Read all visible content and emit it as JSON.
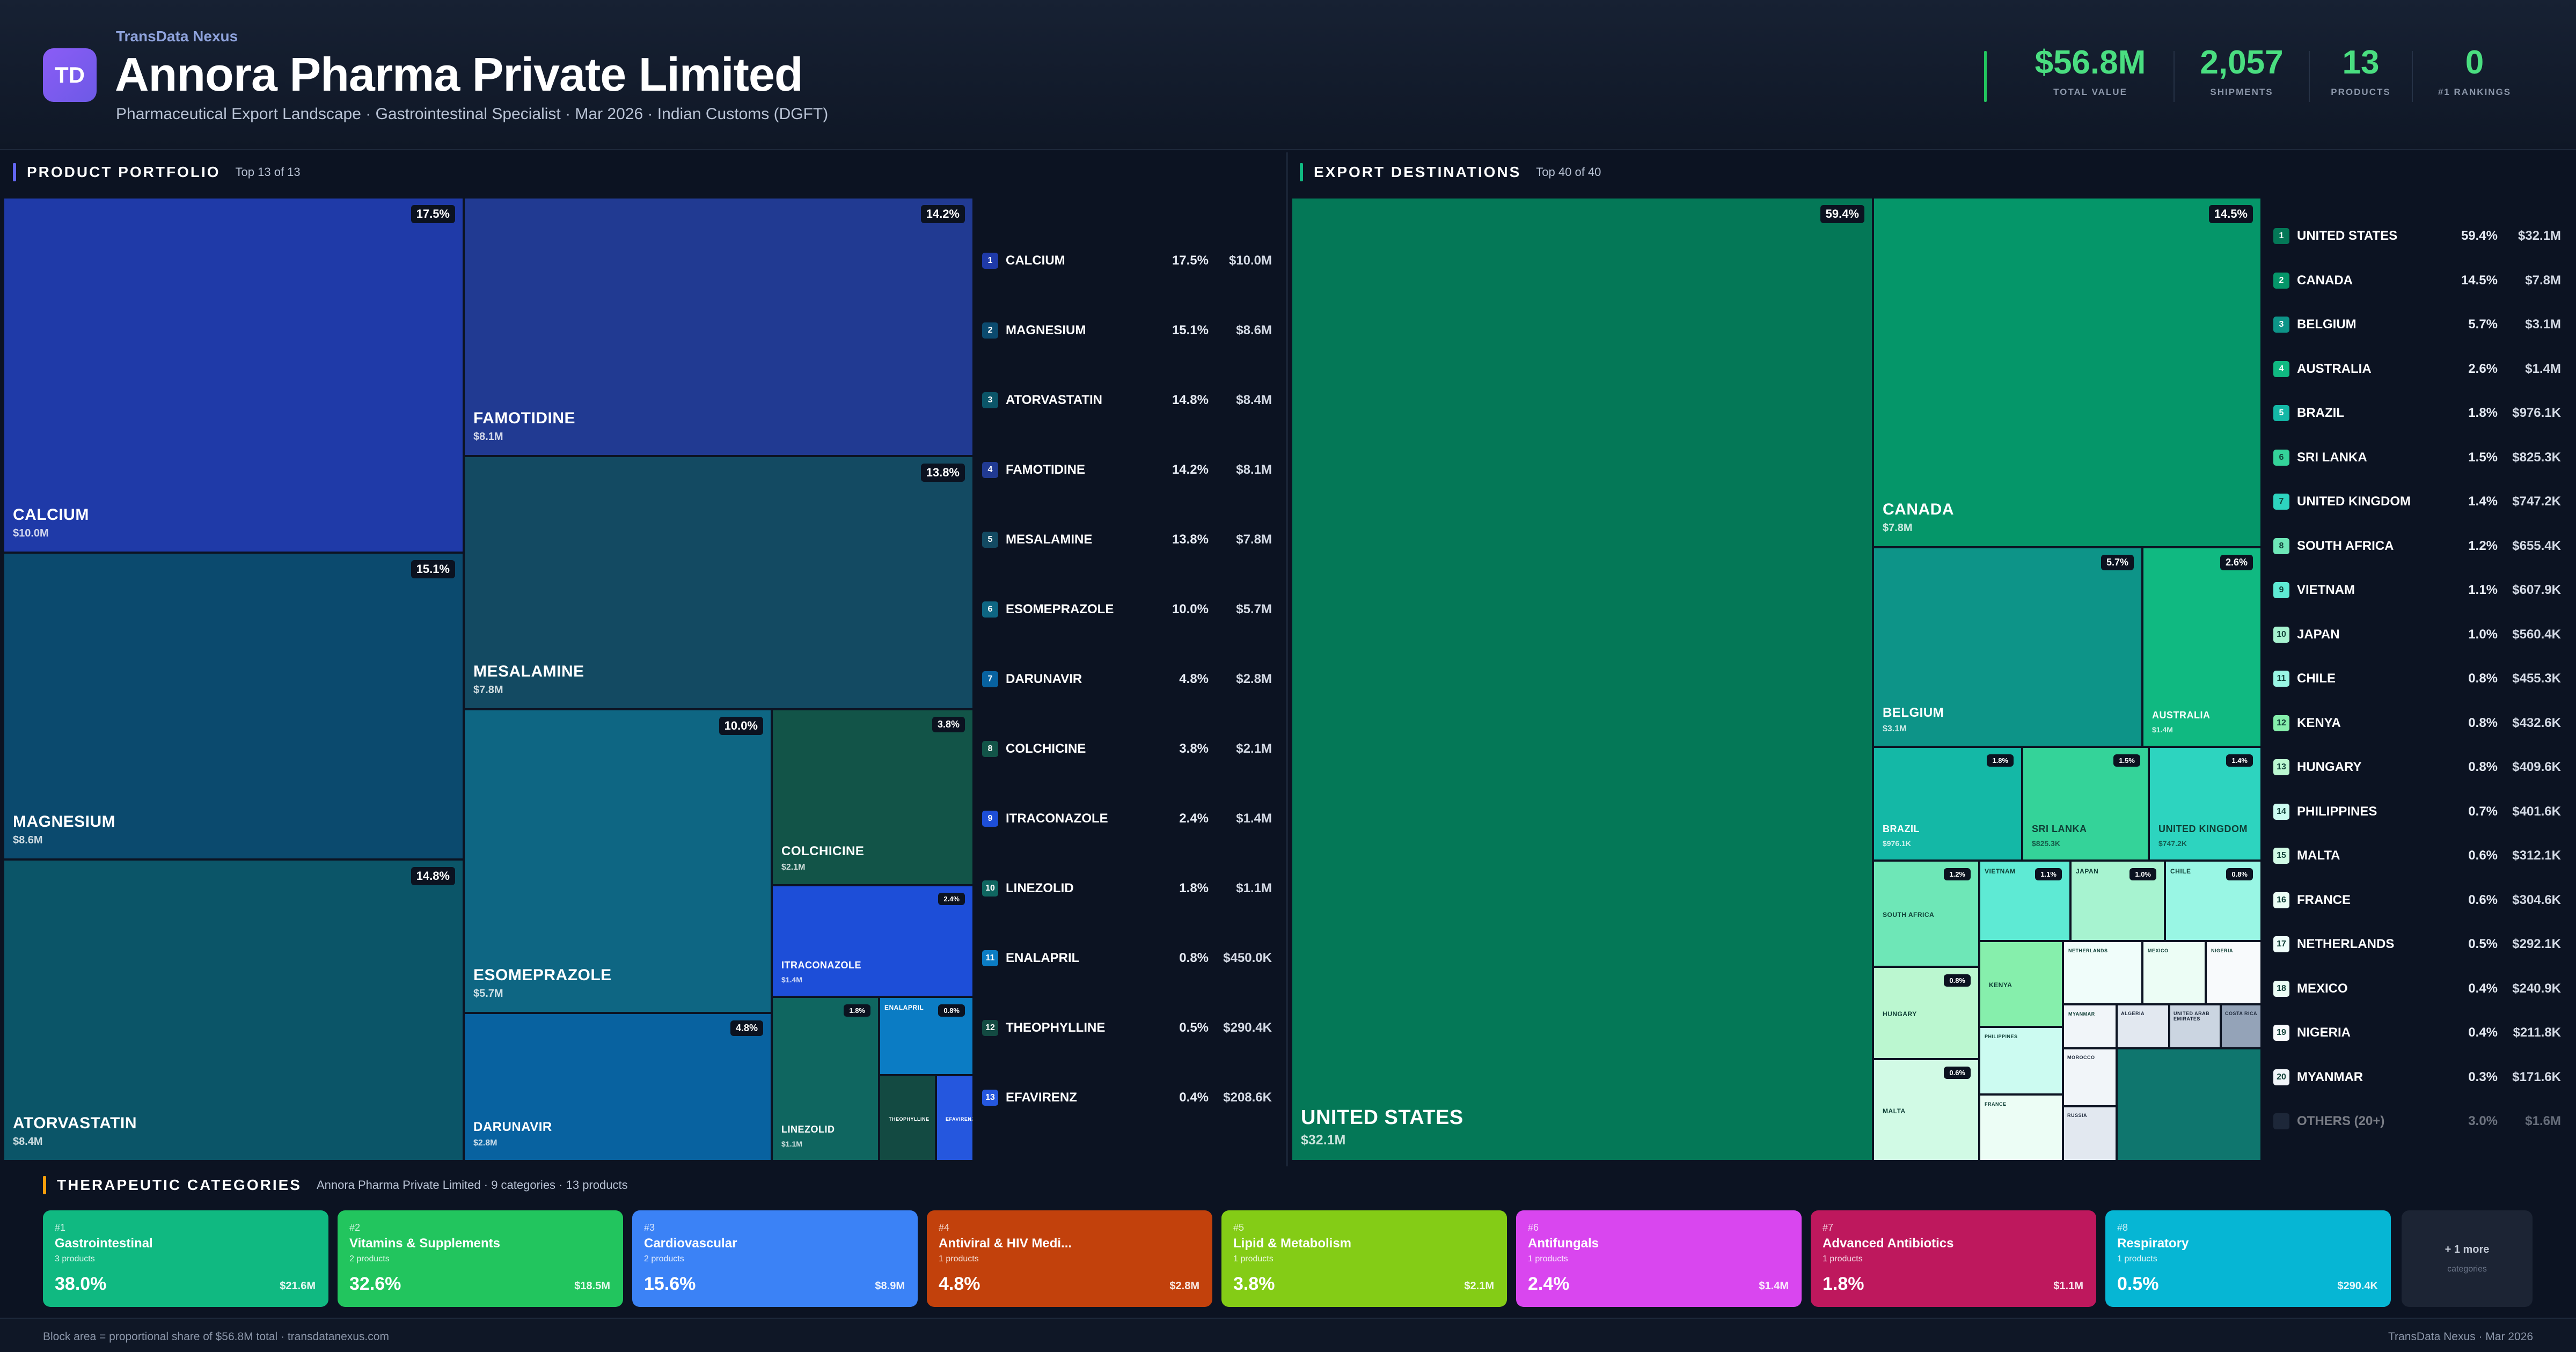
{
  "header": {
    "brand": "TransData Nexus",
    "logo_text": "TD",
    "title": "Annora Pharma Private Limited",
    "subtitle": "Pharmaceutical Export Landscape · Gastrointestinal Specialist · Mar 2026 · Indian Customs (DGFT)",
    "stats": [
      {
        "value": "$56.8M",
        "label": "TOTAL VALUE"
      },
      {
        "value": "2,057",
        "label": "SHIPMENTS"
      },
      {
        "value": "13",
        "label": "PRODUCTS"
      },
      {
        "value": "0",
        "label": "#1 RANKINGS"
      }
    ]
  },
  "portfolio": {
    "title": "PRODUCT PORTFOLIO",
    "subtitle": "Top 13 of 13",
    "items": [
      {
        "rank": "1",
        "name": "CALCIUM",
        "pct": "17.5%",
        "value": "$10.0M",
        "color": "#1f3aa8"
      },
      {
        "rank": "2",
        "name": "MAGNESIUM",
        "pct": "15.1%",
        "value": "$8.6M",
        "color": "#0b4a6e"
      },
      {
        "rank": "3",
        "name": "ATORVASTATIN",
        "pct": "14.8%",
        "value": "$8.4M",
        "color": "#0b5568"
      },
      {
        "rank": "4",
        "name": "FAMOTIDINE",
        "pct": "14.2%",
        "value": "$8.1M",
        "color": "#213a92"
      },
      {
        "rank": "5",
        "name": "MESALAMINE",
        "pct": "13.8%",
        "value": "$7.8M",
        "color": "#134a62"
      },
      {
        "rank": "6",
        "name": "ESOMEPRAZOLE",
        "pct": "10.0%",
        "value": "$5.7M",
        "color": "#0e6683"
      },
      {
        "rank": "7",
        "name": "DARUNAVIR",
        "pct": "4.8%",
        "value": "$2.8M",
        "color": "#0862a0"
      },
      {
        "rank": "8",
        "name": "COLCHICINE",
        "pct": "3.8%",
        "value": "$2.1M",
        "color": "#125448"
      },
      {
        "rank": "9",
        "name": "ITRACONAZOLE",
        "pct": "2.4%",
        "value": "$1.4M",
        "color": "#1d4ed8"
      },
      {
        "rank": "10",
        "name": "LINEZOLID",
        "pct": "1.8%",
        "value": "$1.1M",
        "color": "#0f6660"
      },
      {
        "rank": "11",
        "name": "ENALAPRIL",
        "pct": "0.8%",
        "value": "$450.0K",
        "color": "#0b7cc4"
      },
      {
        "rank": "12",
        "name": "THEOPHYLLINE",
        "pct": "0.5%",
        "value": "$290.4K",
        "color": "#134a42"
      },
      {
        "rank": "13",
        "name": "EFAVIRENZ",
        "pct": "0.4%",
        "value": "$208.6K",
        "color": "#2557de"
      }
    ]
  },
  "destinations": {
    "title": "EXPORT DESTINATIONS",
    "subtitle": "Top 40 of 40",
    "items": [
      {
        "rank": "1",
        "name": "UNITED STATES",
        "pct": "59.4%",
        "value": "$32.1M",
        "color": "#047857"
      },
      {
        "rank": "2",
        "name": "CANADA",
        "pct": "14.5%",
        "value": "$7.8M",
        "color": "#059669"
      },
      {
        "rank": "3",
        "name": "BELGIUM",
        "pct": "5.7%",
        "value": "$3.1M",
        "color": "#0d9488"
      },
      {
        "rank": "4",
        "name": "AUSTRALIA",
        "pct": "2.6%",
        "value": "$1.4M",
        "color": "#10b981"
      },
      {
        "rank": "5",
        "name": "BRAZIL",
        "pct": "1.8%",
        "value": "$976.1K",
        "color": "#14b8a6"
      },
      {
        "rank": "6",
        "name": "SRI LANKA",
        "pct": "1.5%",
        "value": "$825.3K",
        "color": "#34d399"
      },
      {
        "rank": "7",
        "name": "UNITED KINGDOM",
        "pct": "1.4%",
        "value": "$747.2K",
        "color": "#2dd4bf"
      },
      {
        "rank": "8",
        "name": "SOUTH AFRICA",
        "pct": "1.2%",
        "value": "$655.4K",
        "color": "#6ee7b7"
      },
      {
        "rank": "9",
        "name": "VIETNAM",
        "pct": "1.1%",
        "value": "$607.9K",
        "color": "#5eead4"
      },
      {
        "rank": "10",
        "name": "JAPAN",
        "pct": "1.0%",
        "value": "$560.4K",
        "color": "#a7f3d0"
      },
      {
        "rank": "11",
        "name": "CHILE",
        "pct": "0.8%",
        "value": "$455.3K",
        "color": "#99f6e4"
      },
      {
        "rank": "12",
        "name": "KENYA",
        "pct": "0.8%",
        "value": "$432.6K",
        "color": "#86efac"
      },
      {
        "rank": "13",
        "name": "HUNGARY",
        "pct": "0.8%",
        "value": "$409.6K",
        "color": "#bbf7d0"
      },
      {
        "rank": "14",
        "name": "PHILIPPINES",
        "pct": "0.7%",
        "value": "$401.6K",
        "color": "#ccfbf1"
      },
      {
        "rank": "15",
        "name": "MALTA",
        "pct": "0.6%",
        "value": "$312.1K",
        "color": "#d1fae5"
      },
      {
        "rank": "16",
        "name": "FRANCE",
        "pct": "0.6%",
        "value": "$304.6K",
        "color": "#ecfdf5"
      },
      {
        "rank": "17",
        "name": "NETHERLANDS",
        "pct": "0.5%",
        "value": "$292.1K",
        "color": "#f0fdfa"
      },
      {
        "rank": "18",
        "name": "MEXICO",
        "pct": "0.4%",
        "value": "$240.9K",
        "color": "#ecfdf5"
      },
      {
        "rank": "19",
        "name": "NIGERIA",
        "pct": "0.4%",
        "value": "$211.8K",
        "color": "#f8fafc"
      },
      {
        "rank": "20",
        "name": "MYANMAR",
        "pct": "0.3%",
        "value": "$171.6K",
        "color": "#f1f5f9"
      }
    ],
    "others": {
      "name": "OTHERS (20+)",
      "pct": "3.0%",
      "value": "$1.6M",
      "color": "#334155"
    },
    "small_tiles": [
      {
        "name": "ALGERIA",
        "color": "#e2e8f0"
      },
      {
        "name": "UNITED ARAB EMIRATES",
        "color": "#cbd5e1"
      },
      {
        "name": "COSTA RICA",
        "color": "#94a3b8"
      },
      {
        "name": "MOROCCO",
        "color": "#f1f5f9"
      },
      {
        "name": "RUSSIA",
        "color": "#e2e8f0"
      }
    ]
  },
  "categories": {
    "title": "THERAPEUTIC CATEGORIES",
    "subtitle": "Annora Pharma Private Limited · 9 categories · 13 products",
    "items": [
      {
        "rank": "#1",
        "name": "Gastrointestinal",
        "count": "3 products",
        "pct": "38.0%",
        "value": "$21.6M",
        "color": "#10b981"
      },
      {
        "rank": "#2",
        "name": "Vitamins & Supplements",
        "count": "2 products",
        "pct": "32.6%",
        "value": "$18.5M",
        "color": "#22c55e"
      },
      {
        "rank": "#3",
        "name": "Cardiovascular",
        "count": "2 products",
        "pct": "15.6%",
        "value": "$8.9M",
        "color": "#3b82f6"
      },
      {
        "rank": "#4",
        "name": "Antiviral & HIV Medi...",
        "count": "1 products",
        "pct": "4.8%",
        "value": "$2.8M",
        "color": "#c2410c"
      },
      {
        "rank": "#5",
        "name": "Lipid & Metabolism",
        "count": "1 products",
        "pct": "3.8%",
        "value": "$2.1M",
        "color": "#84cc16"
      },
      {
        "rank": "#6",
        "name": "Antifungals",
        "count": "1 products",
        "pct": "2.4%",
        "value": "$1.4M",
        "color": "#d946ef"
      },
      {
        "rank": "#7",
        "name": "Advanced Antibiotics",
        "count": "1 products",
        "pct": "1.8%",
        "value": "$1.1M",
        "color": "#be185d"
      },
      {
        "rank": "#8",
        "name": "Respiratory",
        "count": "1 products",
        "pct": "0.5%",
        "value": "$290.4K",
        "color": "#06b6d4"
      }
    ],
    "more_label": "+ 1 more",
    "more_sub": "categories"
  },
  "footer": {
    "left": "Block area = proportional share of $56.8M total · transdatanexus.com",
    "right": "TransData Nexus · Mar 2026"
  }
}
